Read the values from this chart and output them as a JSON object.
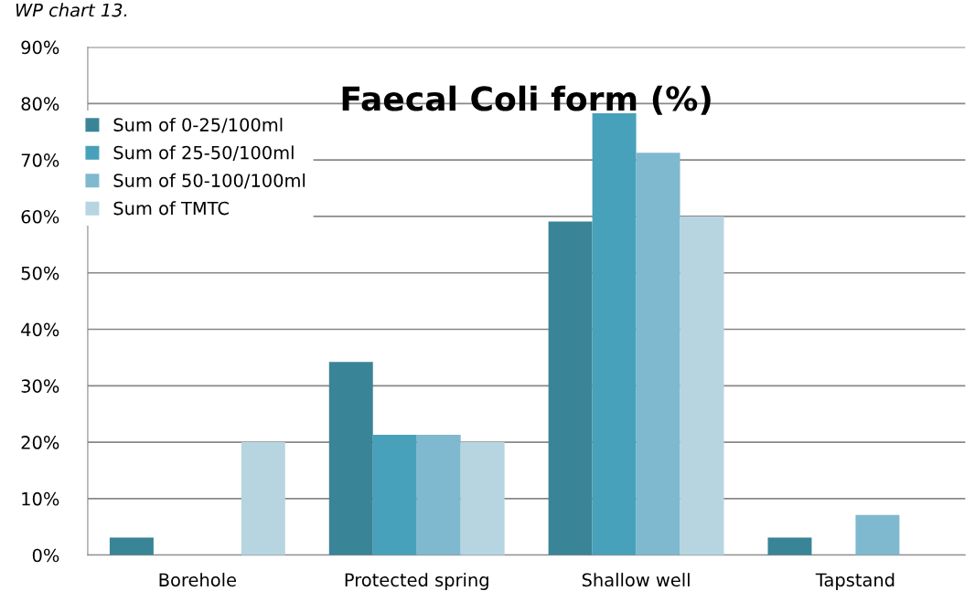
{
  "chart_data": {
    "type": "bar",
    "title": "Faecal Coli form (%)",
    "annotations": [
      "WP chart 13."
    ],
    "categories": [
      "Borehole",
      "Protected spring",
      "Shallow well",
      "Tapstand"
    ],
    "series": [
      {
        "name": "Sum of 0-25/100ml",
        "color": "#3a8497",
        "values": [
          3.1,
          34.2,
          59.1,
          3.1
        ]
      },
      {
        "name": "Sum of 25-50/100ml",
        "color": "#48a1ba",
        "values": [
          0,
          21.3,
          78.3,
          0
        ]
      },
      {
        "name": "Sum of 50-100/100ml",
        "color": "#7fb9cf",
        "values": [
          0,
          21.3,
          71.3,
          7.1
        ]
      },
      {
        "name": "Sum of TMTC",
        "color": "#b7d5e0",
        "values": [
          20,
          20,
          60,
          0
        ]
      }
    ],
    "ylim": [
      0,
      90
    ],
    "yticks": [
      {
        "value": 0,
        "label": "0%"
      },
      {
        "value": 10,
        "label": "10%"
      },
      {
        "value": 20,
        "label": "20%"
      },
      {
        "value": 30,
        "label": "30%"
      },
      {
        "value": 40,
        "label": "40%"
      },
      {
        "value": 50,
        "label": "50%"
      },
      {
        "value": 60,
        "label": "60%"
      },
      {
        "value": 70,
        "label": "70%"
      },
      {
        "value": 80,
        "label": "80%"
      },
      {
        "value": 90,
        "label": "90%"
      }
    ],
    "grid": "y",
    "legend": "top left"
  }
}
